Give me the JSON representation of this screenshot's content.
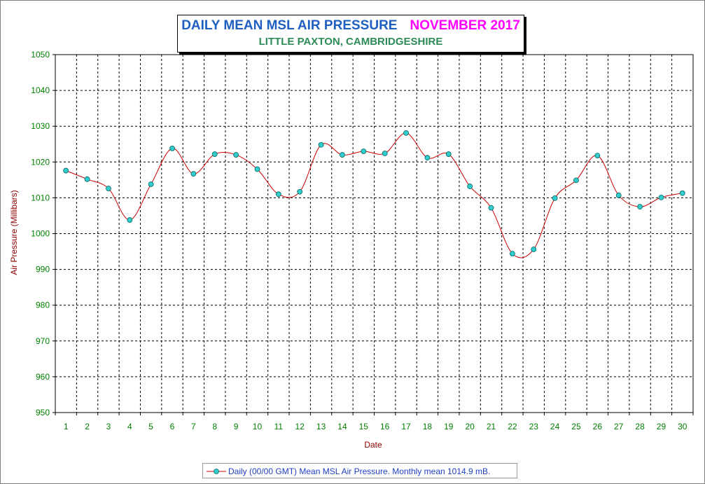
{
  "title": "DAILY MEAN MSL AIR PRESSURE",
  "title_month": "NOVEMBER 2017",
  "subtitle": "LITTLE PAXTON, CAMBRIDGESHIRE",
  "colors": {
    "title": "#1f5fbf",
    "month": "#ff00ff",
    "subtitle": "#2e8b57",
    "line": "#cc0000",
    "marker_fill": "#33cccc",
    "ticks": "#008000",
    "axis_title": "#8b0000",
    "legend_text": "#1f3fbf"
  },
  "legend": {
    "label": "Daily (00/00 GMT) Mean MSL Air Pressure. Monthly mean 1014.9 mB.",
    "position": "bottom-center"
  },
  "chart_data": {
    "type": "line",
    "title": "DAILY MEAN MSL AIR PRESSURE",
    "xlabel": "Date",
    "ylabel": "Air Pressure (Millibars)",
    "ylim": [
      950,
      1050
    ],
    "y_ticks": [
      950,
      960,
      970,
      980,
      990,
      1000,
      1010,
      1020,
      1030,
      1040,
      1050
    ],
    "grid": true,
    "x": [
      1,
      2,
      3,
      4,
      5,
      6,
      7,
      8,
      9,
      10,
      11,
      12,
      13,
      14,
      15,
      16,
      17,
      18,
      19,
      20,
      21,
      22,
      23,
      24,
      25,
      26,
      27,
      28,
      29,
      30
    ],
    "series": [
      {
        "name": "Daily (00/00 GMT) Mean MSL Air Pressure. Monthly mean 1014.9 mB.",
        "values": [
          1017.6,
          1015.2,
          1012.6,
          1003.8,
          1013.8,
          1023.8,
          1016.7,
          1022.2,
          1022.0,
          1018.0,
          1011.0,
          1011.7,
          1024.8,
          1022.0,
          1023.0,
          1022.4,
          1028.1,
          1021.2,
          1022.2,
          1013.2,
          1007.2,
          994.4,
          995.6,
          1009.9,
          1014.9,
          1021.8,
          1010.7,
          1007.5,
          1010.1,
          1011.3
        ]
      }
    ]
  }
}
